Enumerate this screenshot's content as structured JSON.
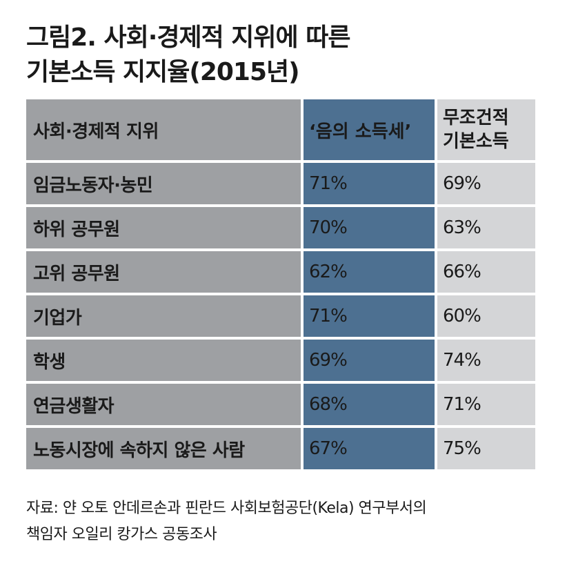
{
  "title": {
    "line1": "그림2. 사회·경제적 지위에 따른",
    "line2": "기본소득 지지율(2015년)"
  },
  "chart_data": {
    "type": "table",
    "columns": [
      "사회·경제적 지위",
      "‘음의 소득세’",
      "무조건적 기본소득"
    ],
    "rows": [
      {
        "label": "임금노동자·농민",
        "negative_income_tax": "71%",
        "unconditional_basic_income": "69%"
      },
      {
        "label": "하위 공무원",
        "negative_income_tax": "70%",
        "unconditional_basic_income": "63%"
      },
      {
        "label": "고위 공무원",
        "negative_income_tax": "62%",
        "unconditional_basic_income": "66%"
      },
      {
        "label": "기업가",
        "negative_income_tax": "71%",
        "unconditional_basic_income": "60%"
      },
      {
        "label": "학생",
        "negative_income_tax": "69%",
        "unconditional_basic_income": "74%"
      },
      {
        "label": "연금생활자",
        "negative_income_tax": "68%",
        "unconditional_basic_income": "71%"
      },
      {
        "label": "노동시장에 속하지 않은 사람",
        "negative_income_tax": "67%",
        "unconditional_basic_income": "75%"
      }
    ]
  },
  "header_col3": {
    "line1": "무조건적",
    "line2": "기본소득"
  },
  "source": {
    "line1": "자료: 얀 오토 안데르손과 핀란드 사회보험공단(Kela) 연구부서의",
    "line2": "책임자 오일리 캉가스 공동조사"
  },
  "colors": {
    "label_column": "#9ea0a3",
    "highlight_column": "#4d7091",
    "light_column": "#d4d5d7"
  }
}
